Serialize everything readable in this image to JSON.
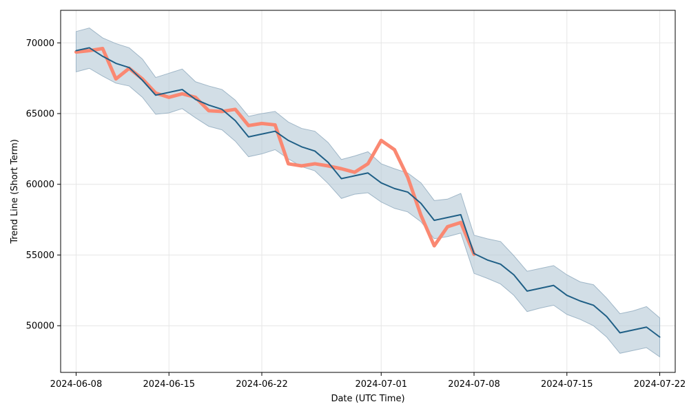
{
  "chart_data": {
    "type": "line",
    "xlabel": "Date (UTC Time)",
    "ylabel": "Trend Line (Short Term)",
    "xlim": [
      "2024-06-06T20:00:00",
      "2024-07-23T04:00:00"
    ],
    "ylim": [
      46700,
      72300
    ],
    "x_ticks": [
      "2024-06-08",
      "2024-06-15",
      "2024-06-22",
      "2024-07-01",
      "2024-07-08",
      "2024-07-15",
      "2024-07-22"
    ],
    "y_ticks": [
      50000,
      55000,
      60000,
      65000,
      70000
    ],
    "grid": true,
    "colors": {
      "actual": "#fa8872",
      "trend": "#1f5f86",
      "band": "#b4c8d6"
    },
    "series": [
      {
        "key": "actual",
        "x": [
          "2024-06-08",
          "2024-06-09",
          "2024-06-10",
          "2024-06-11",
          "2024-06-12",
          "2024-06-13",
          "2024-06-14",
          "2024-06-15",
          "2024-06-16",
          "2024-06-17",
          "2024-06-18",
          "2024-06-19",
          "2024-06-20",
          "2024-06-21",
          "2024-06-22",
          "2024-06-23",
          "2024-06-24",
          "2024-06-25",
          "2024-06-26",
          "2024-06-27",
          "2024-06-28",
          "2024-06-29",
          "2024-06-30",
          "2024-07-01",
          "2024-07-02",
          "2024-07-03",
          "2024-07-04",
          "2024-07-05",
          "2024-07-06",
          "2024-07-07",
          "2024-07-08"
        ],
        "values": [
          69350,
          69450,
          69600,
          67450,
          68200,
          67450,
          66450,
          66150,
          66400,
          66150,
          65200,
          65150,
          65300,
          64150,
          64300,
          64200,
          61450,
          61300,
          61450,
          61300,
          61100,
          60850,
          61450,
          63100,
          62450,
          60500,
          57800,
          55650,
          57000,
          57300,
          55050
        ]
      },
      {
        "key": "trend",
        "x": [
          "2024-06-08",
          "2024-06-09",
          "2024-06-10",
          "2024-06-11",
          "2024-06-12",
          "2024-06-13",
          "2024-06-14",
          "2024-06-15",
          "2024-06-16",
          "2024-06-17",
          "2024-06-18",
          "2024-06-19",
          "2024-06-20",
          "2024-06-21",
          "2024-06-22",
          "2024-06-23",
          "2024-06-24",
          "2024-06-25",
          "2024-06-26",
          "2024-06-27",
          "2024-06-28",
          "2024-06-29",
          "2024-06-30",
          "2024-07-01",
          "2024-07-02",
          "2024-07-03",
          "2024-07-04",
          "2024-07-05",
          "2024-07-06",
          "2024-07-07",
          "2024-07-08",
          "2024-07-09",
          "2024-07-10",
          "2024-07-11",
          "2024-07-12",
          "2024-07-13",
          "2024-07-14",
          "2024-07-15",
          "2024-07-16",
          "2024-07-17",
          "2024-07-18",
          "2024-07-19",
          "2024-07-20",
          "2024-07-21",
          "2024-07-22"
        ],
        "values": [
          69450,
          69650,
          69050,
          68550,
          68250,
          67350,
          66300,
          66500,
          66700,
          66000,
          65600,
          65300,
          64500,
          63350,
          63550,
          63750,
          63100,
          62650,
          62350,
          61550,
          60400,
          60600,
          60800,
          60100,
          59700,
          59450,
          58650,
          57450,
          57650,
          57850,
          55100,
          54650,
          54350,
          53600,
          52450,
          52650,
          52850,
          52150,
          51750,
          51450,
          50650,
          49500,
          49700,
          49900,
          49200
        ]
      }
    ],
    "band": {
      "x": [
        "2024-06-08",
        "2024-06-09",
        "2024-06-10",
        "2024-06-11",
        "2024-06-12",
        "2024-06-13",
        "2024-06-14",
        "2024-06-15",
        "2024-06-16",
        "2024-06-17",
        "2024-06-18",
        "2024-06-19",
        "2024-06-20",
        "2024-06-21",
        "2024-06-22",
        "2024-06-23",
        "2024-06-24",
        "2024-06-25",
        "2024-06-26",
        "2024-06-27",
        "2024-06-28",
        "2024-06-29",
        "2024-06-30",
        "2024-07-01",
        "2024-07-02",
        "2024-07-03",
        "2024-07-04",
        "2024-07-05",
        "2024-07-06",
        "2024-07-07",
        "2024-07-08",
        "2024-07-09",
        "2024-07-10",
        "2024-07-11",
        "2024-07-12",
        "2024-07-13",
        "2024-07-14",
        "2024-07-15",
        "2024-07-16",
        "2024-07-17",
        "2024-07-18",
        "2024-07-19",
        "2024-07-20",
        "2024-07-21",
        "2024-07-22"
      ],
      "upper": [
        70800,
        71050,
        70350,
        69950,
        69650,
        68850,
        67550,
        67850,
        68150,
        67250,
        66950,
        66700,
        65950,
        64800,
        65000,
        65150,
        64400,
        63950,
        63750,
        62950,
        61750,
        62000,
        62300,
        61450,
        61100,
        60800,
        60100,
        58850,
        58950,
        59350,
        56400,
        56150,
        55950,
        54950,
        53850,
        54050,
        54250,
        53600,
        53100,
        52900,
        51950,
        50850,
        51050,
        51350,
        50550
      ],
      "lower": [
        67950,
        68200,
        67650,
        67150,
        66950,
        66150,
        64950,
        65050,
        65350,
        64700,
        64100,
        63850,
        63050,
        61950,
        62150,
        62450,
        61800,
        61250,
        60950,
        60050,
        59000,
        59300,
        59400,
        58750,
        58300,
        58050,
        57350,
        56150,
        56300,
        56550,
        53700,
        53350,
        52950,
        52150,
        51000,
        51250,
        51450,
        50800,
        50450,
        50000,
        49200,
        48050,
        48250,
        48450,
        47800
      ]
    }
  }
}
